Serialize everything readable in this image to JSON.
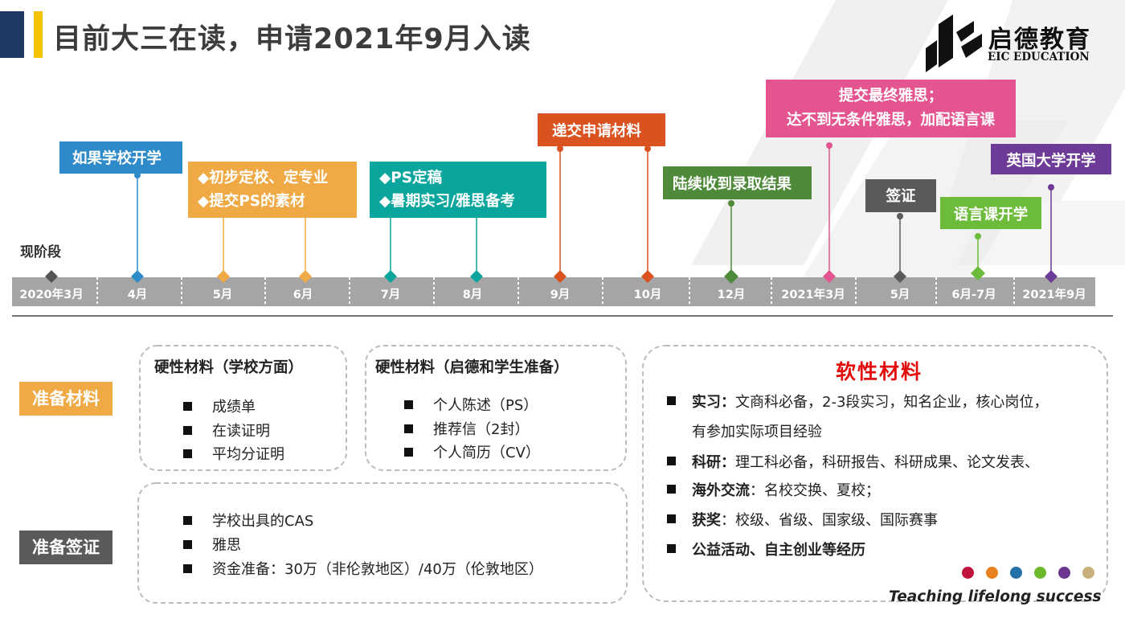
{
  "header": {
    "title": "目前大三在读，申请2021年9月入读",
    "brand_cn": "启德教育",
    "brand_en": "EIC EDUCATION"
  },
  "timeline": {
    "stage_label": "现阶段",
    "months": [
      "2020年3月",
      "4月",
      "5月",
      "6月",
      "7月",
      "8月",
      "9月",
      "10月",
      "12月",
      "2021年3月",
      "5月",
      "6月-7月",
      "2021年9月"
    ],
    "events": {
      "school_start": "如果学校开学",
      "choose_school": [
        "◆初步定校、定专业",
        "◆提交PS的素材"
      ],
      "ps_final": [
        "◆PS定稿",
        "◆暑期实习/雅思备考"
      ],
      "submit": "递交申请材料",
      "offers": "陆续收到录取结果",
      "ielts": [
        "提交最终雅思；",
        "达不到无条件雅思，加配语言课"
      ],
      "visa": "签证",
      "language_course": "语言课开学",
      "uk_start": "英国大学开学"
    }
  },
  "sections": {
    "prepare_materials": "准备材料",
    "prepare_visa": "准备签证"
  },
  "hard_school": {
    "title": "硬性材料（学校方面）",
    "items": [
      "成绩单",
      "在读证明",
      "平均分证明"
    ]
  },
  "hard_student": {
    "title": "硬性材料（启德和学生准备）",
    "items": [
      "个人陈述（PS）",
      "推荐信（2封）",
      "个人简历（CV）"
    ]
  },
  "visa_box": {
    "items": [
      "学校出具的CAS",
      "雅思",
      "资金准备：30万（非伦敦地区）/40万（伦敦地区）"
    ]
  },
  "soft": {
    "title": "软性材料",
    "internship_label": "实习：",
    "internship_text": "文商科必备，2-3段实习，知名企业，核心岗位，",
    "internship_text2": "有参加实际项目经验",
    "research_label": "科研：",
    "research_text": "理工科必备，科研报告、科研成果、论文发表、",
    "exchange_label": "海外交流",
    "exchange_text": "：名校交换、夏校；",
    "award_label": "获奖",
    "award_text": "：校级、省级、国家级、国际赛事",
    "public_label": "公益活动、自主创业等经历"
  },
  "tagline": "Teaching lifelong success",
  "colors": {
    "navy": "#1f3864",
    "gold": "#f5c400",
    "blue": "#2e8bc9",
    "orange": "#f0aa45",
    "teal": "#0aa59c",
    "red_orange": "#db5221",
    "green": "#4f8a3b",
    "pink": "#e45490",
    "gray": "#5a5a5a",
    "light_green": "#6dbb3a",
    "purple": "#6d3a98",
    "red_title": "#e30c0c"
  },
  "dot_colors": [
    "#c0133e",
    "#e8821e",
    "#2470a8",
    "#6fba2c",
    "#6b3590",
    "#c9b07a"
  ]
}
